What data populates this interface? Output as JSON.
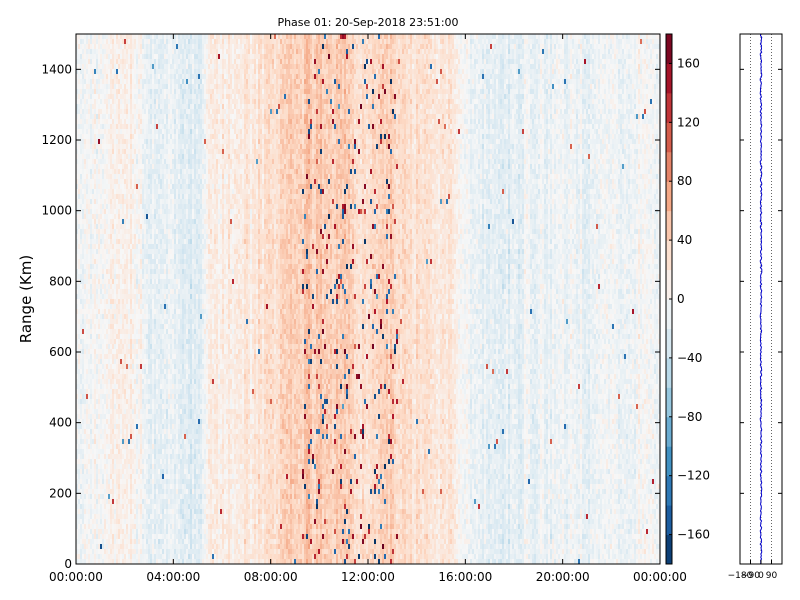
{
  "chart_data": [
    {
      "type": "heatmap",
      "title": "Phase 01: 20-Sep-2018 23:51:00",
      "ylabel": "Range (Km)",
      "xlabel": "",
      "x_range": [
        "00:00:00",
        "00:00:00"
      ],
      "x_ticks": [
        "00:00:00",
        "04:00:00",
        "08:00:00",
        "12:00:00",
        "16:00:00",
        "20:00:00",
        "00:00:00"
      ],
      "y_range": [
        0,
        1500
      ],
      "y_ticks": [
        0,
        200,
        400,
        600,
        800,
        1000,
        1200,
        1400
      ],
      "colorbar": {
        "range": [
          -180,
          180
        ],
        "ticks": [
          -160,
          -120,
          -80,
          -40,
          0,
          40,
          80,
          120,
          160
        ],
        "colormap": "RdBu_r"
      },
      "column_profile_hours": [
        0,
        1,
        2,
        2.6,
        3,
        4,
        5,
        5.5,
        6,
        7,
        8,
        9,
        9.5,
        10,
        10.5,
        11,
        11.5,
        12,
        12.5,
        13,
        13.5,
        14,
        15,
        15.5,
        16,
        17,
        18,
        19,
        20,
        21,
        22,
        23,
        24
      ],
      "column_profile_mean_phase": [
        -8,
        3,
        8,
        6,
        -18,
        -14,
        -26,
        10,
        14,
        20,
        32,
        42,
        50,
        48,
        40,
        46,
        36,
        30,
        32,
        40,
        36,
        30,
        25,
        18,
        -8,
        -16,
        -15,
        -12,
        -9,
        -11,
        -5,
        -3,
        -6
      ]
    },
    {
      "type": "line",
      "title": "",
      "x_ticks": [
        "-180",
        "-90",
        "0",
        "90"
      ],
      "xlim": [
        -180,
        180
      ],
      "ylim": [
        0,
        1500
      ],
      "grid": "vertical-dotted",
      "series_color": "#0000cc",
      "approx_center": 0
    }
  ],
  "colors": {
    "line": "#0000cc",
    "axis": "#000000"
  }
}
